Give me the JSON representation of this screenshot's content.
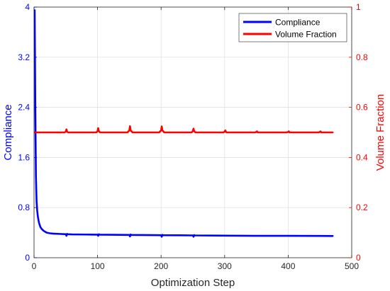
{
  "chart_data": {
    "type": "line",
    "title": "",
    "xlabel": "Optimization Step",
    "xlim": [
      0,
      500
    ],
    "x_ticks": [
      0,
      100,
      200,
      300,
      400,
      500
    ],
    "x_tick_labels": [
      "0",
      "100",
      "200",
      "300",
      "400",
      "500"
    ],
    "grid": true,
    "legend_position": "top-right",
    "y_left": {
      "label": "Compliance",
      "lim": [
        0,
        4
      ],
      "ticks": [
        0,
        0.8,
        1.6,
        2.4,
        3.2,
        4
      ],
      "tick_labels": [
        "0",
        "0.8",
        "1.6",
        "2.4",
        "3.2",
        "4"
      ],
      "color": "#0000ff"
    },
    "y_right": {
      "label": "Volume Fraction",
      "lim": [
        0,
        1
      ],
      "ticks": [
        0,
        0.2,
        0.4,
        0.6,
        0.8,
        1
      ],
      "tick_labels": [
        "0",
        "0.2",
        "0.4",
        "0.6",
        "0.8",
        "1"
      ],
      "color": "#ff0000"
    },
    "series": [
      {
        "name": "Compliance",
        "axis": "left",
        "color": "#0000ff",
        "x": [
          1,
          2,
          3,
          4,
          5,
          6,
          7,
          8,
          10,
          12,
          15,
          20,
          25,
          30,
          40,
          50,
          51,
          52,
          53,
          60,
          80,
          100,
          101,
          102,
          103,
          120,
          150,
          151,
          152,
          153,
          170,
          200,
          201,
          202,
          203,
          230,
          250,
          251,
          252,
          253,
          280,
          300,
          350,
          400,
          450,
          470
        ],
        "values": [
          3.95,
          2.4,
          1.3,
          0.9,
          0.75,
          0.66,
          0.6,
          0.55,
          0.49,
          0.46,
          0.43,
          0.4,
          0.39,
          0.385,
          0.38,
          0.375,
          0.35,
          0.38,
          0.375,
          0.372,
          0.37,
          0.368,
          0.35,
          0.375,
          0.368,
          0.366,
          0.364,
          0.34,
          0.37,
          0.364,
          0.362,
          0.36,
          0.335,
          0.365,
          0.36,
          0.358,
          0.356,
          0.335,
          0.36,
          0.356,
          0.354,
          0.352,
          0.35,
          0.349,
          0.348,
          0.347
        ]
      },
      {
        "name": "Volume Fraction",
        "axis": "right",
        "color": "#ff0000",
        "x": [
          1,
          48,
          50,
          51,
          52,
          54,
          98,
          100,
          101,
          102,
          104,
          147,
          150,
          151,
          152,
          155,
          197,
          200,
          201,
          202,
          205,
          248,
          250,
          251,
          252,
          254,
          298,
          300,
          301,
          302,
          303,
          348,
          350,
          351,
          352,
          398,
          400,
          401,
          402,
          448,
          450,
          451,
          452,
          470
        ],
        "values": [
          0.5,
          0.5,
          0.503,
          0.512,
          0.503,
          0.5,
          0.5,
          0.505,
          0.517,
          0.505,
          0.5,
          0.5,
          0.508,
          0.525,
          0.508,
          0.5,
          0.5,
          0.508,
          0.524,
          0.508,
          0.5,
          0.5,
          0.505,
          0.515,
          0.505,
          0.5,
          0.5,
          0.503,
          0.508,
          0.503,
          0.5,
          0.5,
          0.502,
          0.504,
          0.5,
          0.5,
          0.502,
          0.504,
          0.5,
          0.5,
          0.502,
          0.504,
          0.5,
          0.5
        ]
      }
    ]
  }
}
